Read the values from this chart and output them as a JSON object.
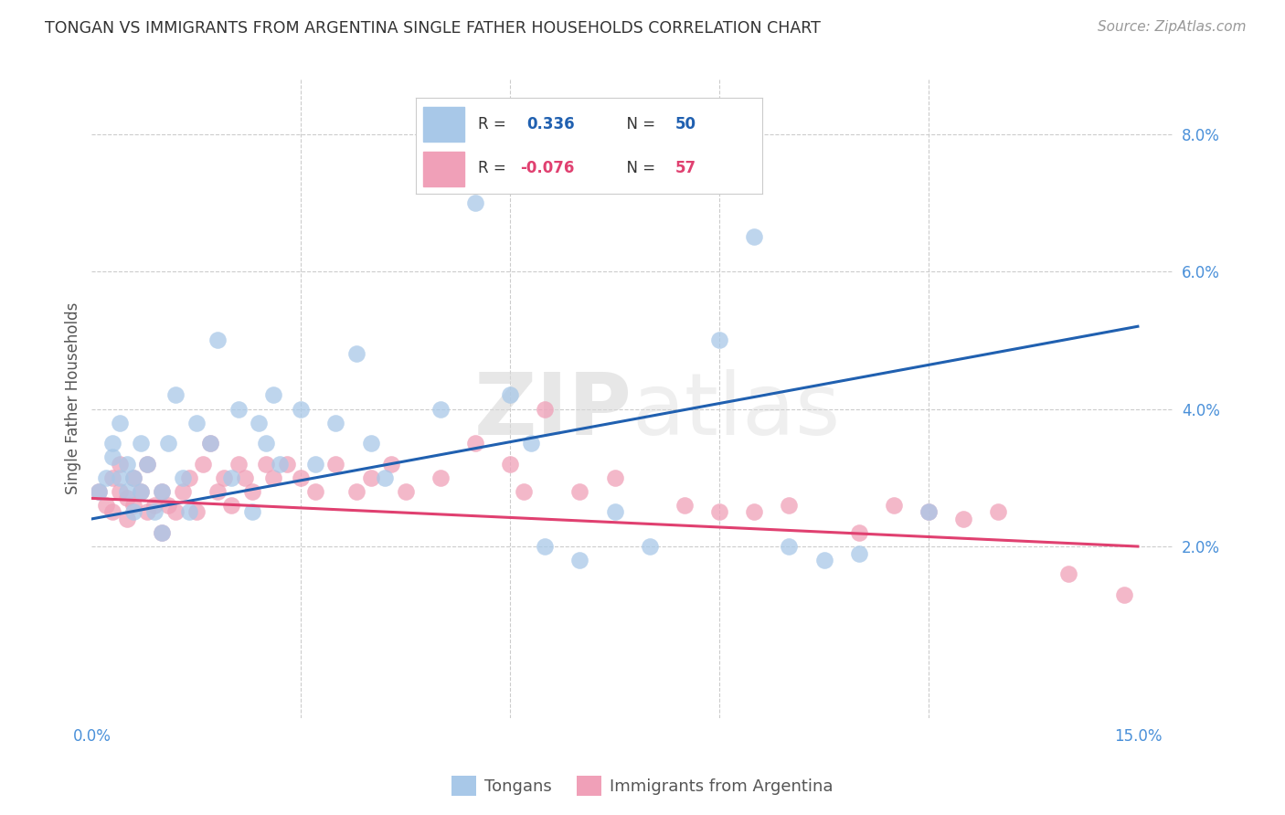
{
  "title": "TONGAN VS IMMIGRANTS FROM ARGENTINA SINGLE FATHER HOUSEHOLDS CORRELATION CHART",
  "source": "Source: ZipAtlas.com",
  "tick_color": "#4a90d9",
  "ylabel": "Single Father Households",
  "xlim": [
    0.0,
    0.155
  ],
  "ylim": [
    -0.005,
    0.088
  ],
  "grid_color": "#cccccc",
  "background_color": "#ffffff",
  "tongan_color": "#a8c8e8",
  "argentina_color": "#f0a0b8",
  "tongan_line_color": "#2060b0",
  "argentina_line_color": "#e04070",
  "tongan_R": 0.336,
  "tongan_N": 50,
  "argentina_R": -0.076,
  "argentina_N": 57,
  "legend_label_1": "Tongans",
  "legend_label_2": "Immigrants from Argentina",
  "tongan_x": [
    0.001,
    0.002,
    0.003,
    0.003,
    0.004,
    0.004,
    0.005,
    0.005,
    0.006,
    0.006,
    0.007,
    0.007,
    0.008,
    0.009,
    0.01,
    0.01,
    0.011,
    0.012,
    0.013,
    0.014,
    0.015,
    0.017,
    0.018,
    0.02,
    0.021,
    0.023,
    0.024,
    0.025,
    0.026,
    0.027,
    0.03,
    0.032,
    0.035,
    0.038,
    0.04,
    0.042,
    0.05,
    0.055,
    0.06,
    0.063,
    0.065,
    0.07,
    0.075,
    0.08,
    0.09,
    0.095,
    0.1,
    0.105,
    0.11,
    0.12
  ],
  "tongan_y": [
    0.028,
    0.03,
    0.033,
    0.035,
    0.03,
    0.038,
    0.028,
    0.032,
    0.025,
    0.03,
    0.028,
    0.035,
    0.032,
    0.025,
    0.022,
    0.028,
    0.035,
    0.042,
    0.03,
    0.025,
    0.038,
    0.035,
    0.05,
    0.03,
    0.04,
    0.025,
    0.038,
    0.035,
    0.042,
    0.032,
    0.04,
    0.032,
    0.038,
    0.048,
    0.035,
    0.03,
    0.04,
    0.07,
    0.042,
    0.035,
    0.02,
    0.018,
    0.025,
    0.02,
    0.05,
    0.065,
    0.02,
    0.018,
    0.019,
    0.025
  ],
  "argentina_x": [
    0.001,
    0.002,
    0.003,
    0.003,
    0.004,
    0.004,
    0.005,
    0.005,
    0.006,
    0.006,
    0.007,
    0.008,
    0.008,
    0.009,
    0.01,
    0.01,
    0.011,
    0.012,
    0.013,
    0.014,
    0.015,
    0.016,
    0.017,
    0.018,
    0.019,
    0.02,
    0.021,
    0.022,
    0.023,
    0.025,
    0.026,
    0.028,
    0.03,
    0.032,
    0.035,
    0.038,
    0.04,
    0.043,
    0.045,
    0.05,
    0.055,
    0.06,
    0.062,
    0.065,
    0.07,
    0.075,
    0.085,
    0.09,
    0.095,
    0.1,
    0.11,
    0.115,
    0.12,
    0.125,
    0.13,
    0.14,
    0.148
  ],
  "argentina_y": [
    0.028,
    0.026,
    0.025,
    0.03,
    0.028,
    0.032,
    0.024,
    0.027,
    0.026,
    0.03,
    0.028,
    0.025,
    0.032,
    0.026,
    0.028,
    0.022,
    0.026,
    0.025,
    0.028,
    0.03,
    0.025,
    0.032,
    0.035,
    0.028,
    0.03,
    0.026,
    0.032,
    0.03,
    0.028,
    0.032,
    0.03,
    0.032,
    0.03,
    0.028,
    0.032,
    0.028,
    0.03,
    0.032,
    0.028,
    0.03,
    0.035,
    0.032,
    0.028,
    0.04,
    0.028,
    0.03,
    0.026,
    0.025,
    0.025,
    0.026,
    0.022,
    0.026,
    0.025,
    0.024,
    0.025,
    0.016,
    0.013
  ],
  "ton_line_x0": 0.0,
  "ton_line_y0": 0.024,
  "ton_line_x1": 0.15,
  "ton_line_y1": 0.052,
  "arg_line_x0": 0.0,
  "arg_line_y0": 0.027,
  "arg_line_x1": 0.15,
  "arg_line_y1": 0.02
}
